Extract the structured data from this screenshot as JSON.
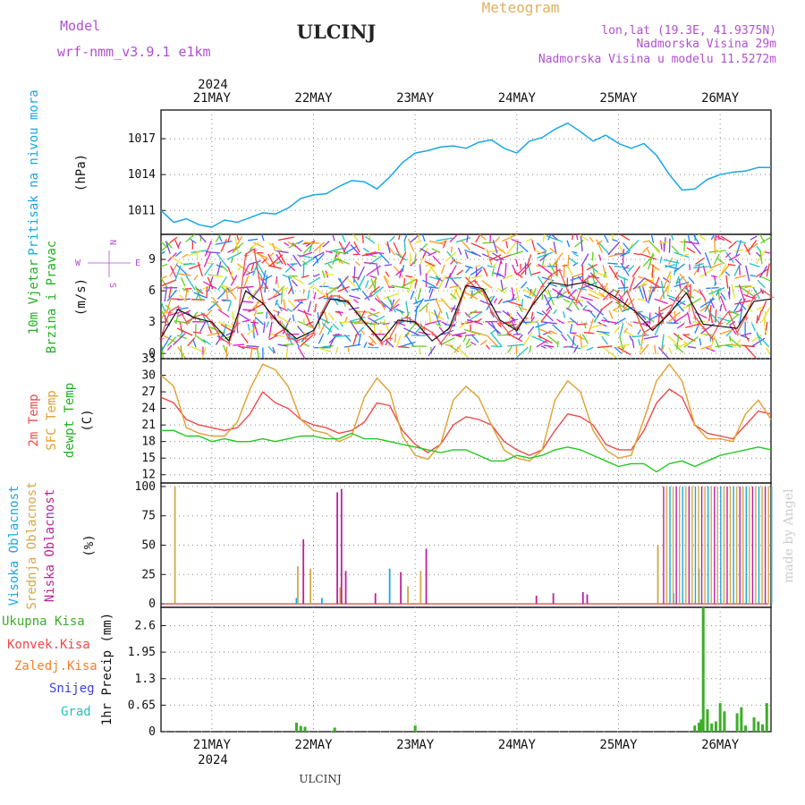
{
  "header": {
    "model_label": "Model",
    "model_name": "wrf-nmm_v3.9.1 e1km",
    "station": "ULCINJ",
    "title": "Meteogram",
    "location": "lon,lat (19.3E, 41.9375N)",
    "elevation": "Nadmorska Visina 29m",
    "model_elevation": "Nadmorska Visina u modelu 11.5272m"
  },
  "time_axis": {
    "year": "2024",
    "days": [
      "21MAY",
      "22MAY",
      "23MAY",
      "24MAY",
      "25MAY",
      "26MAY"
    ]
  },
  "watermark": "made by Angel",
  "footer_station": "ULCINJ",
  "colors": {
    "pressure": "#1aa7e6",
    "t2m": "#f04848",
    "sfc": "#e0a030",
    "dewpt": "#22c822",
    "wind_obs": "#f04848",
    "wind_avg": "#111111",
    "cloud_high": "#1aa7e6",
    "cloud_mid": "#d4a84a",
    "cloud_low": "#c0209a",
    "precip_total": "#3cae28",
    "precip_conv": "#f04848",
    "precip_frozen": "#f08030",
    "precip_snow": "#4040e0",
    "precip_hail": "#20c0c0"
  },
  "chart_data": [
    {
      "type": "line",
      "panel": "pressure",
      "ylabel": [
        "Pritisak na nivou mora",
        "(hPa)"
      ],
      "yticks": [
        1011,
        1014,
        1017
      ],
      "ylim": [
        1009.0,
        1019.4
      ],
      "series": [
        {
          "name": "Pritisak na nivou mora",
          "x": [
            0,
            3,
            6,
            9,
            12,
            15,
            18,
            21,
            24,
            27,
            30,
            33,
            36,
            39,
            42,
            45,
            48,
            51,
            54,
            57,
            60,
            63,
            66,
            69,
            72,
            75,
            78,
            81,
            84,
            87,
            90,
            93,
            96,
            99,
            102,
            105,
            108,
            111,
            114,
            117,
            120,
            123,
            126,
            129,
            132,
            135,
            138,
            141,
            144
          ],
          "y": [
            1011.0,
            1010.0,
            1010.3,
            1009.8,
            1009.6,
            1010.2,
            1010.0,
            1010.4,
            1010.8,
            1010.7,
            1011.2,
            1012.0,
            1012.3,
            1012.4,
            1013.0,
            1013.5,
            1013.4,
            1012.8,
            1013.8,
            1015.0,
            1015.8,
            1016.0,
            1016.3,
            1016.4,
            1016.2,
            1016.7,
            1016.9,
            1016.2,
            1015.8,
            1016.8,
            1017.1,
            1017.8,
            1018.3,
            1017.6,
            1016.8,
            1017.3,
            1016.6,
            1016.2,
            1016.6,
            1015.6,
            1014.0,
            1012.7,
            1012.8,
            1013.6,
            1014.0,
            1014.2,
            1014.3,
            1014.6,
            1014.6
          ]
        }
      ]
    },
    {
      "type": "line",
      "panel": "wind",
      "ylabel": [
        "10m Vjetar",
        "Brzina i Pravac",
        "(m/s)"
      ],
      "compass": {
        "n": "N",
        "s": "S",
        "e": "E",
        "w": "W"
      },
      "yticks": [
        0,
        3,
        6,
        9
      ],
      "ylim": [
        -0.5,
        11.4
      ],
      "series": [
        {
          "name": "wind_speed",
          "x": [
            0,
            2,
            4,
            6,
            8,
            10,
            12,
            14,
            16,
            18,
            20,
            22,
            24,
            26,
            28,
            30,
            32,
            34,
            36,
            38,
            40,
            42,
            44,
            46,
            48,
            50,
            52,
            54,
            56,
            58,
            60,
            62,
            64,
            66,
            68,
            70,
            72,
            74,
            76,
            78,
            80,
            82,
            84,
            86,
            88,
            90,
            92,
            94,
            96,
            98,
            100,
            102,
            104,
            106,
            108,
            110,
            112,
            114,
            116,
            118,
            120,
            122,
            124,
            126,
            128,
            130,
            132,
            134,
            136,
            138,
            140,
            142,
            144
          ],
          "y": [
            1.5,
            4.0,
            4.5,
            3.0,
            3.5,
            3.8,
            3.0,
            1.5,
            1.0,
            3.0,
            9.5,
            10.0,
            5.0,
            3.5,
            3.0,
            1.5,
            1.2,
            1.5,
            2.0,
            4.0,
            5.5,
            5.5,
            5.0,
            4.0,
            3.0,
            2.0,
            1.0,
            1.5,
            3.0,
            3.5,
            3.0,
            2.5,
            2.0,
            1.0,
            2.0,
            4.0,
            6.5,
            7.0,
            6.0,
            4.0,
            3.0,
            2.0,
            2.5,
            3.5,
            5.0,
            6.5,
            7.5,
            8.0,
            6.0,
            5.0,
            7.0,
            7.5,
            6.5,
            5.5,
            5.0,
            6.0,
            4.0,
            2.0,
            2.5,
            3.0,
            4.0,
            5.5,
            6.5,
            3.5,
            2.5,
            1.5,
            3.0,
            4.0,
            2.0,
            3.5,
            5.5,
            6.0,
            5.5
          ]
        },
        {
          "name": "wind_avg",
          "x": [
            0,
            4,
            8,
            12,
            16,
            20,
            24,
            28,
            32,
            36,
            40,
            44,
            48,
            52,
            56,
            60,
            64,
            68,
            72,
            76,
            80,
            84,
            88,
            92,
            96,
            100,
            104,
            108,
            112,
            116,
            120,
            124,
            128,
            132,
            136,
            140,
            144
          ],
          "y": [
            1.5,
            4.2,
            3.4,
            3.0,
            1.2,
            6.0,
            4.8,
            2.8,
            1.4,
            2.2,
            5.2,
            5.0,
            3.0,
            1.2,
            3.2,
            3.0,
            1.2,
            2.4,
            6.5,
            6.2,
            3.2,
            2.2,
            4.8,
            6.8,
            6.5,
            6.8,
            6.2,
            5.2,
            4.0,
            2.2,
            3.8,
            5.8,
            2.8,
            2.6,
            2.4,
            5.0,
            5.2
          ]
        }
      ]
    },
    {
      "type": "line",
      "panel": "temperature",
      "ylabel": [
        "2m Temp",
        "SFC Temp",
        "dewpt Temp",
        "(C)"
      ],
      "yticks": [
        12,
        15,
        18,
        21,
        24,
        27,
        30,
        33
      ],
      "ylim": [
        10.5,
        33.0
      ],
      "series": [
        {
          "name": "2m Temp",
          "x": [
            0,
            3,
            6,
            9,
            12,
            15,
            18,
            21,
            24,
            27,
            30,
            33,
            36,
            39,
            42,
            45,
            48,
            51,
            54,
            57,
            60,
            63,
            66,
            69,
            72,
            75,
            78,
            81,
            84,
            87,
            90,
            93,
            96,
            99,
            102,
            105,
            108,
            111,
            114,
            117,
            120,
            123,
            126,
            129,
            132,
            135,
            138,
            141,
            144
          ],
          "y": [
            26,
            25,
            22,
            21,
            20.5,
            20,
            20.5,
            23,
            27,
            25,
            24,
            22,
            21,
            20.5,
            19.5,
            20,
            21.5,
            25,
            24.5,
            20,
            17.5,
            16,
            17.5,
            21,
            22.5,
            22,
            21,
            18,
            16.5,
            15.5,
            16.5,
            20,
            23,
            22.5,
            21,
            17.5,
            16.5,
            16.5,
            20,
            25,
            27.5,
            26,
            21,
            19.5,
            19,
            18.5,
            21,
            23.5,
            23
          ]
        },
        {
          "name": "SFC Temp",
          "x": [
            0,
            3,
            6,
            9,
            12,
            15,
            18,
            21,
            24,
            27,
            30,
            33,
            36,
            39,
            42,
            45,
            48,
            51,
            54,
            57,
            60,
            63,
            66,
            69,
            72,
            75,
            78,
            81,
            84,
            87,
            90,
            93,
            96,
            99,
            102,
            105,
            108,
            111,
            114,
            117,
            120,
            123,
            126,
            129,
            132,
            135,
            138,
            141,
            144
          ],
          "y": [
            30,
            28,
            20.5,
            19.5,
            19,
            19,
            21.5,
            27.5,
            32,
            31,
            28,
            22,
            20,
            19.5,
            18,
            19,
            26,
            29.5,
            27,
            19,
            15.5,
            14.8,
            17.5,
            25.5,
            28,
            26,
            21,
            16.5,
            15,
            14.5,
            16.5,
            25.5,
            29,
            27,
            20,
            16.5,
            15,
            15.5,
            22,
            29,
            32,
            29,
            21,
            18.5,
            18.5,
            18,
            23,
            25.5,
            22
          ]
        },
        {
          "name": "dewpt Temp",
          "x": [
            0,
            3,
            6,
            9,
            12,
            15,
            18,
            21,
            24,
            27,
            30,
            33,
            36,
            39,
            42,
            45,
            48,
            51,
            54,
            57,
            60,
            63,
            66,
            69,
            72,
            75,
            78,
            81,
            84,
            87,
            90,
            93,
            96,
            99,
            102,
            105,
            108,
            111,
            114,
            117,
            120,
            123,
            126,
            129,
            132,
            135,
            138,
            141,
            144
          ],
          "y": [
            20,
            20,
            19,
            19,
            18,
            18.5,
            18,
            18,
            18.5,
            18,
            18.5,
            19,
            19,
            18.5,
            18.5,
            19.5,
            18.5,
            18.5,
            18,
            17.5,
            17,
            16.5,
            16,
            16.5,
            16.5,
            15.5,
            14.5,
            14.5,
            15.5,
            15,
            15.5,
            16.5,
            17,
            16.5,
            15.5,
            14.5,
            13.5,
            14,
            14,
            12.5,
            14,
            14.5,
            13.5,
            14.5,
            15.5,
            16,
            16.5,
            17,
            16.5
          ]
        }
      ]
    },
    {
      "type": "bar",
      "panel": "cloud",
      "ylabel": [
        "Visoka Oblacnost",
        "Srednja Oblacnost",
        "Niska Oblacnost",
        "(%)"
      ],
      "yticks": [
        0,
        25,
        50,
        75,
        100
      ],
      "ylim": [
        -3,
        103
      ],
      "series": [
        {
          "name": "Visoka Oblacnost",
          "x": [
            32,
            38,
            54,
            121,
            127
          ],
          "y": [
            5,
            5,
            30,
            9,
            30
          ]
        },
        {
          "name": "Srednja Oblacnost",
          "x": [
            3,
            32,
            35,
            42,
            58,
            61,
            117
          ],
          "y": [
            100,
            32,
            30,
            14,
            15,
            28,
            50
          ]
        },
        {
          "name": "Niska Oblacnost",
          "x": [
            33,
            41,
            42,
            43,
            50,
            56,
            62,
            88,
            92,
            99,
            100
          ],
          "y": [
            55,
            95,
            98,
            28,
            9,
            27,
            47,
            7,
            9,
            10,
            8
          ]
        }
      ],
      "overcast_from_x": 118.5
    },
    {
      "type": "bar",
      "panel": "precip",
      "ylabel": [
        "1hr Precip (mm)"
      ],
      "legend": [
        "Ukupna Kisa",
        "Konvek.Kisa",
        "Zaledj.Kisa",
        "Snijeg",
        "Grad"
      ],
      "yticks": [
        0,
        0.65,
        1.3,
        1.95,
        2.6
      ],
      "ylim": [
        0,
        3.05
      ],
      "series": [
        {
          "name": "Ukupna Kisa",
          "x": [
            32,
            33,
            34,
            41,
            60,
            126,
            127,
            127.5,
            128,
            129,
            130,
            131,
            132,
            133,
            136,
            137,
            138,
            140,
            141,
            142,
            143
          ],
          "y": [
            0.22,
            0.14,
            0.12,
            0.1,
            0.15,
            0.15,
            0.22,
            0.3,
            3.05,
            0.55,
            0.2,
            0.25,
            0.7,
            0.5,
            0.45,
            0.6,
            0.15,
            0.35,
            0.25,
            0.18,
            0.7
          ]
        }
      ]
    }
  ]
}
